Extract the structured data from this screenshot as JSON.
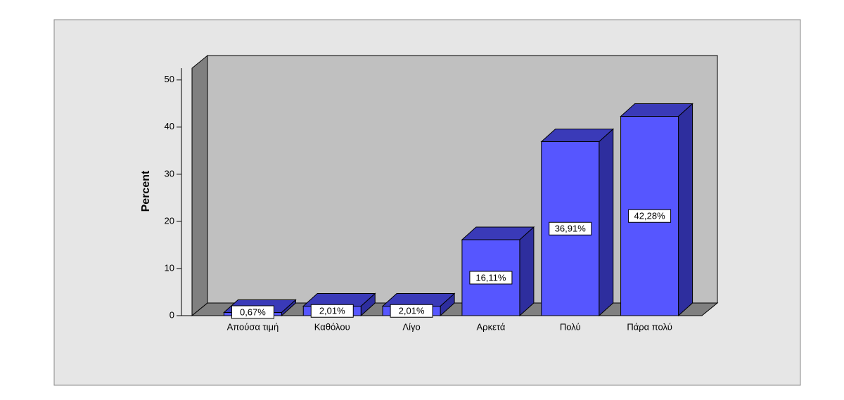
{
  "chart_data": {
    "type": "bar3d",
    "y_label": "Percent",
    "categories": [
      "Απούσα τιμή",
      "Καθόλου",
      "Λίγο",
      "Αρκετά",
      "Πολύ",
      "Πάρα πολύ"
    ],
    "values": [
      0.67,
      2.01,
      2.01,
      16.11,
      36.91,
      42.28
    ],
    "value_labels": [
      "0,67%",
      "2,01%",
      "2,01%",
      "16,11%",
      "36,91%",
      "42,28%"
    ],
    "color": "#5656ff",
    "ylim": [
      0,
      52.5
    ],
    "yticks": [
      0,
      10,
      20,
      30,
      40,
      50
    ]
  }
}
